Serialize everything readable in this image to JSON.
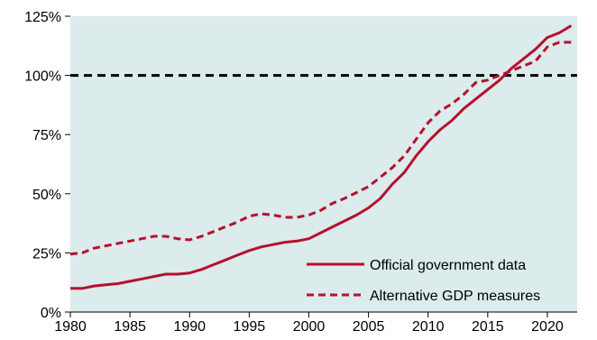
{
  "chart_data": {
    "type": "line",
    "title": "",
    "xlabel": "",
    "ylabel": "",
    "xlim": [
      1980,
      2022.5
    ],
    "ylim": [
      0,
      125
    ],
    "x_ticks": [
      1980,
      1985,
      1990,
      1995,
      2000,
      2005,
      2010,
      2015,
      2020
    ],
    "x_tick_labels": [
      "1980",
      "1985",
      "1990",
      "1995",
      "2000",
      "2005",
      "2010",
      "2015",
      "2020"
    ],
    "y_ticks": [
      0,
      25,
      50,
      75,
      100,
      125
    ],
    "y_tick_labels": [
      "0%",
      "25%",
      "50%",
      "75%",
      "100%",
      "125%"
    ],
    "reference_line": {
      "y": 100,
      "style": "dashed",
      "color": "#000000"
    },
    "grid": false,
    "background": "#dcebeb",
    "legend_position": "bottom-right",
    "series": [
      {
        "name": "Official government data",
        "style": "solid",
        "color": "#b5112f",
        "x": [
          1980,
          1981,
          1982,
          1983,
          1984,
          1985,
          1986,
          1987,
          1988,
          1989,
          1990,
          1991,
          1992,
          1993,
          1994,
          1995,
          1996,
          1997,
          1998,
          1999,
          2000,
          2001,
          2002,
          2003,
          2004,
          2005,
          2006,
          2007,
          2008,
          2009,
          2010,
          2011,
          2012,
          2013,
          2014,
          2015,
          2016,
          2017,
          2018,
          2019,
          2020,
          2021,
          2022
        ],
        "y": [
          10,
          10,
          11,
          11.5,
          12,
          13,
          14,
          15,
          16,
          16,
          16.5,
          18,
          20,
          22,
          24,
          26,
          27.5,
          28.5,
          29.5,
          30,
          31,
          33.5,
          36,
          38.5,
          41,
          44,
          48,
          54,
          59,
          66,
          72,
          77,
          81,
          86,
          90,
          94,
          98,
          103,
          107,
          111,
          116,
          118,
          121
        ]
      },
      {
        "name": "Alternative GDP measures",
        "style": "dashed",
        "color": "#b5112f",
        "x": [
          1980,
          1981,
          1982,
          1983,
          1984,
          1985,
          1986,
          1987,
          1988,
          1989,
          1990,
          1991,
          1992,
          1993,
          1994,
          1995,
          1996,
          1997,
          1998,
          1999,
          2000,
          2001,
          2002,
          2003,
          2004,
          2005,
          2006,
          2007,
          2008,
          2009,
          2010,
          2011,
          2012,
          2013,
          2014,
          2015,
          2016,
          2017,
          2018,
          2019,
          2020,
          2021,
          2022
        ],
        "y": [
          24.5,
          25,
          27,
          28,
          29,
          30,
          31,
          32,
          32,
          31,
          30.5,
          32,
          34,
          36,
          38,
          40.5,
          41.5,
          41,
          40,
          40,
          41,
          43,
          46,
          48,
          50.5,
          53,
          57,
          61,
          66,
          73,
          80,
          85,
          88,
          92,
          97,
          98,
          100,
          102,
          104,
          106,
          112,
          114,
          114
        ]
      }
    ]
  }
}
